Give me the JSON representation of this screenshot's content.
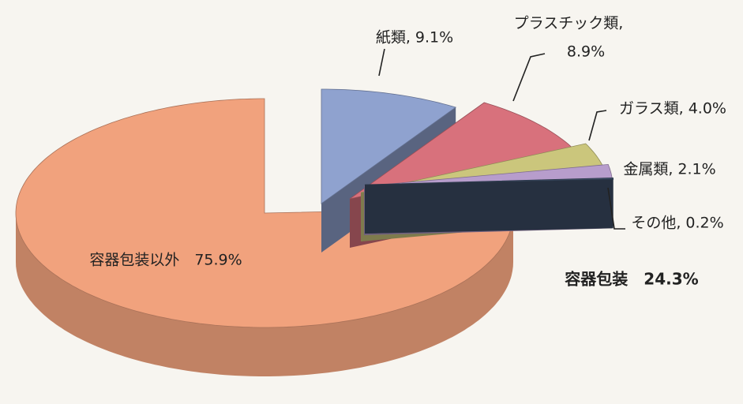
{
  "chart_data": {
    "type": "pie3d",
    "categories": [
      "紙類",
      "プラスチック類",
      "ガラス類",
      "金属類",
      "その他",
      "容器包装以外"
    ],
    "values": [
      9.1,
      8.9,
      4.0,
      2.1,
      0.2,
      75.9
    ],
    "value_labels": [
      [
        "紙類, 9.1%"
      ],
      [
        "プラスチック類,",
        "8.9%"
      ],
      [
        "ガラス類, 4.0%"
      ],
      [
        "金属類, 2.1%"
      ],
      [
        "その他, 0.2%"
      ],
      [
        "容器包装以外　75.9%"
      ]
    ],
    "colors": [
      "#8fa2cf",
      "#d8717c",
      "#cbc67c",
      "#b79dcc",
      "#3e4e67",
      "#f1a27d"
    ],
    "exploded": [
      true,
      true,
      true,
      true,
      true,
      false
    ],
    "annotations": [
      "容器包装　24.3%"
    ]
  }
}
